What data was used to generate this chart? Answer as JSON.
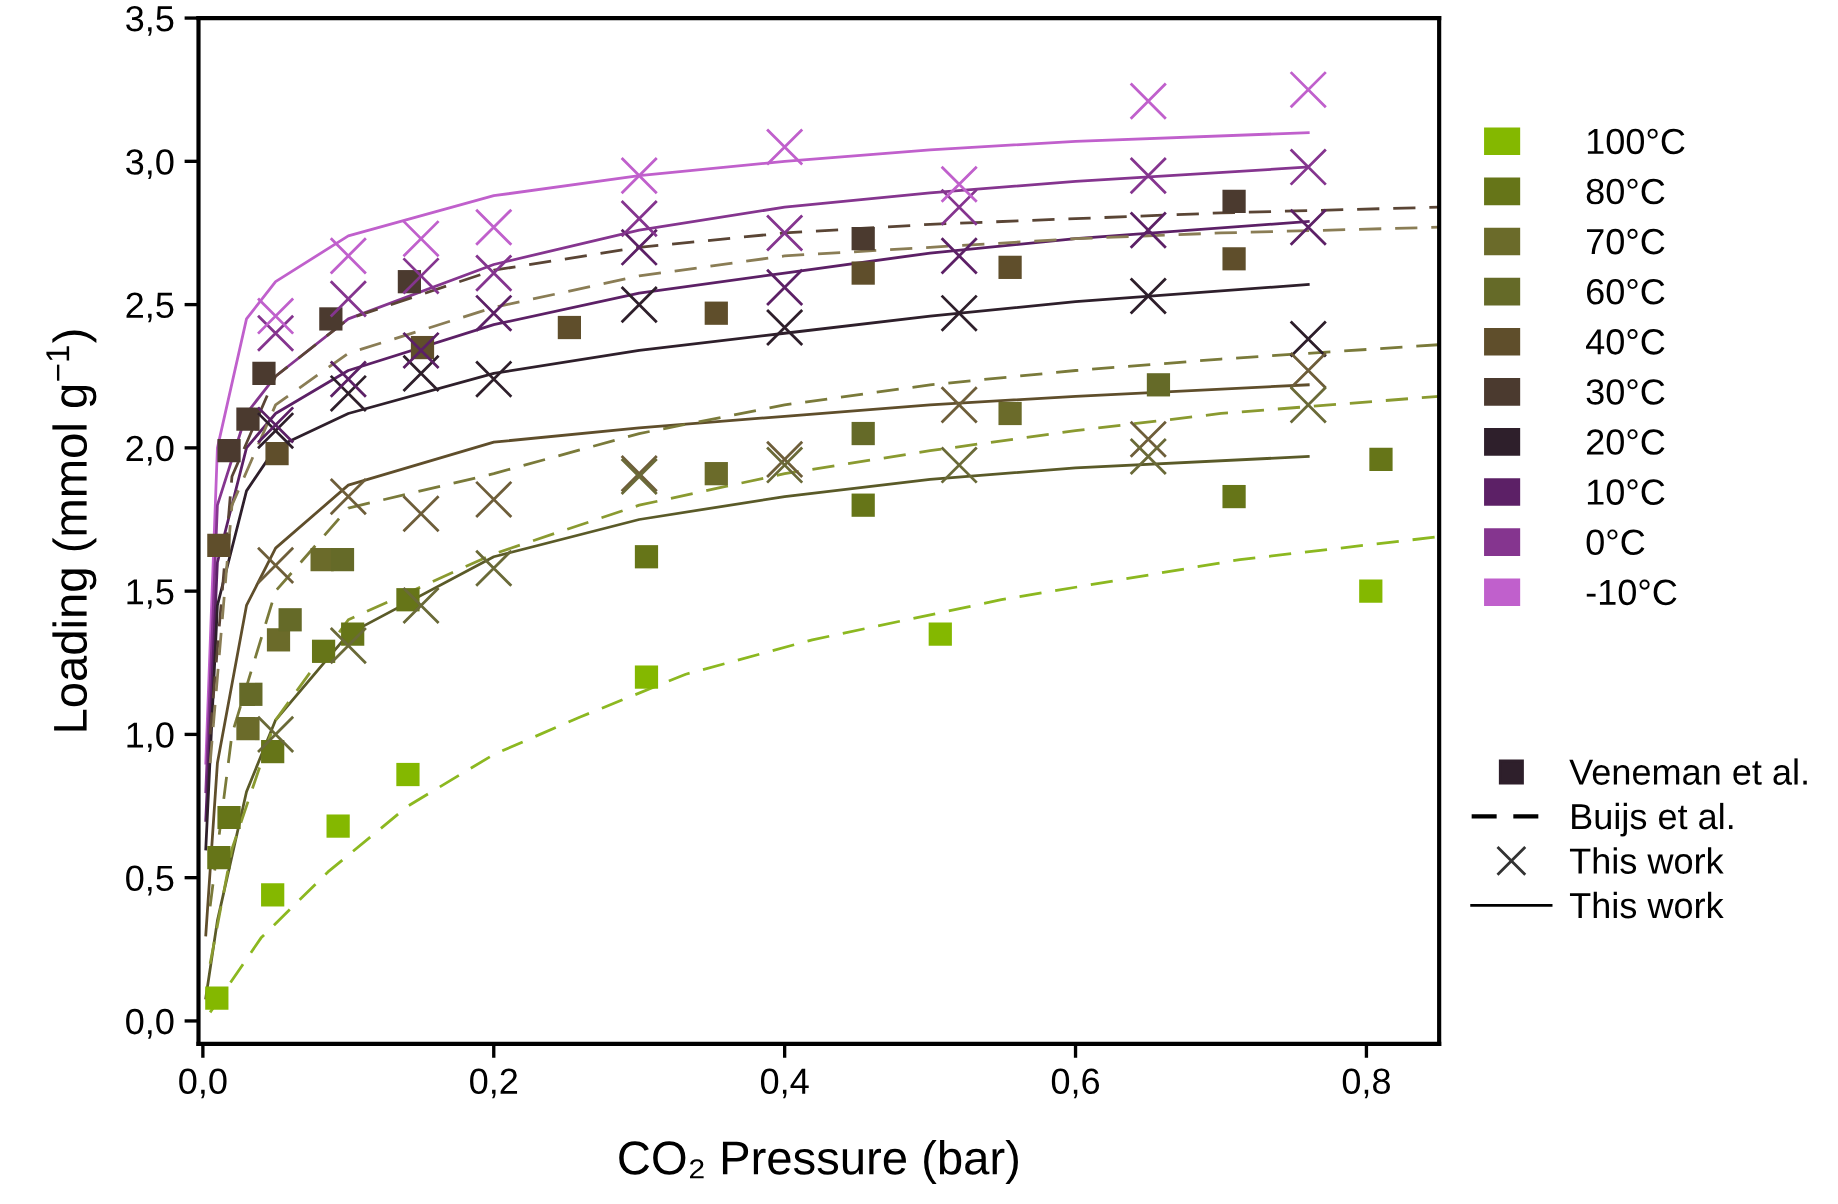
{
  "chart_data": {
    "type": "scatter",
    "xlabel": "CO₂ Pressure (bar)",
    "ylabel": "Loading (mmol g$^{−1}$)",
    "xlim": [
      -0.003,
      0.85
    ],
    "ylim": [
      -0.08,
      3.5
    ],
    "xticks": [
      {
        "value": 0,
        "label": "0,0"
      },
      {
        "value": 0.2,
        "label": "0,2"
      },
      {
        "value": 0.4,
        "label": "0,4"
      },
      {
        "value": 0.6,
        "label": "0,6"
      },
      {
        "value": 0.8,
        "label": "0,8"
      }
    ],
    "yticks": [
      {
        "value": 0,
        "label": "0,0"
      },
      {
        "value": 0.5,
        "label": "0,5"
      },
      {
        "value": 1,
        "label": "1,0"
      },
      {
        "value": 1.5,
        "label": "1,5"
      },
      {
        "value": 2,
        "label": "2,0"
      },
      {
        "value": 2.5,
        "label": "2,5"
      },
      {
        "value": 3,
        "label": "3,0"
      },
      {
        "value": 3.5,
        "label": "3,5"
      }
    ],
    "grid": false,
    "legend": "right",
    "annotations": [
      "Veneman et al.",
      "Buijs et al.",
      "This work",
      "This work"
    ],
    "series": [
      {
        "name": "100°C",
        "marker": "square",
        "color": "#84b800",
        "x": [
          0.0096,
          0.048,
          0.093,
          0.141,
          0.305,
          0.507,
          0.803
        ],
        "values": [
          0.08,
          0.44,
          0.68,
          0.86,
          1.2,
          1.35,
          1.5
        ]
      },
      {
        "name": "80°C",
        "marker": "square",
        "color": "#667518",
        "x": [
          0.011,
          0.018,
          0.048,
          0.083,
          0.103,
          0.141,
          0.305,
          0.454,
          0.709,
          0.81
        ],
        "values": [
          0.57,
          0.71,
          0.94,
          1.29,
          1.35,
          1.47,
          1.62,
          1.8,
          1.83,
          1.96
        ]
      },
      {
        "name": "70°C",
        "marker": "square",
        "color": "#6b6b2a",
        "x": [
          0.031,
          0.052,
          0.082,
          0.353,
          0.555
        ],
        "values": [
          1.02,
          1.33,
          1.61,
          1.91,
          2.12
        ]
      },
      {
        "name": "60°C",
        "marker": "square",
        "color": "#656a28",
        "x": [
          0.033,
          0.06,
          0.096,
          0.454,
          0.657
        ],
        "values": [
          1.14,
          1.4,
          1.61,
          2.05,
          2.22
        ]
      },
      {
        "name": "40°C",
        "marker": "square",
        "color": "#5f4e2b",
        "x": [
          0.011,
          0.051,
          0.151,
          0.252,
          0.353,
          0.454,
          0.555,
          0.709
        ],
        "values": [
          1.66,
          1.98,
          2.35,
          2.42,
          2.47,
          2.61,
          2.63,
          2.66
        ]
      },
      {
        "name": "30°C",
        "marker": "square",
        "color": "#4b3a2f",
        "x": [
          0.018,
          0.031,
          0.042,
          0.088,
          0.142,
          0.454,
          0.709
        ],
        "values": [
          1.99,
          2.1,
          2.26,
          2.45,
          2.58,
          2.73,
          2.86
        ]
      },
      {
        "name": "20°C",
        "marker": "cross",
        "color": "#2e1f2b",
        "x": [
          0.05,
          0.1,
          0.15,
          0.2,
          0.3,
          0.4,
          0.52,
          0.65,
          0.76
        ],
        "values": [
          2.06,
          2.19,
          2.26,
          2.24,
          2.5,
          2.42,
          2.47,
          2.53,
          2.38
        ]
      },
      {
        "name": "10°C",
        "marker": "cross",
        "color": "#5c2066",
        "x": [
          0.05,
          0.1,
          0.15,
          0.2,
          0.3,
          0.4,
          0.52,
          0.65,
          0.76
        ],
        "values": [
          2.08,
          2.24,
          2.34,
          2.47,
          2.7,
          2.56,
          2.67,
          2.76,
          2.77
        ]
      },
      {
        "name": "0°C",
        "marker": "cross",
        "color": "#85358f",
        "x": [
          0.05,
          0.1,
          0.15,
          0.2,
          0.3,
          0.4,
          0.52,
          0.65,
          0.76
        ],
        "values": [
          2.4,
          2.52,
          2.6,
          2.61,
          2.8,
          2.75,
          2.84,
          2.95,
          2.98
        ]
      },
      {
        "name": "-10°C",
        "marker": "cross",
        "color": "#c060cc",
        "x": [
          0.05,
          0.1,
          0.15,
          0.2,
          0.3,
          0.4,
          0.52,
          0.65,
          0.76
        ],
        "values": [
          2.46,
          2.67,
          2.73,
          2.77,
          2.95,
          3.05,
          2.92,
          3.21,
          3.25
        ]
      },
      {
        "marker": "cross",
        "color": "#6e5e3a",
        "x": [
          0.05,
          0.1,
          0.15,
          0.2,
          0.3,
          0.4,
          0.52,
          0.65,
          0.76
        ],
        "values": [
          1.59,
          1.83,
          1.77,
          1.82,
          1.91,
          1.96,
          2.15,
          2.03,
          2.27
        ]
      },
      {
        "marker": "cross",
        "color": "#6a6a38",
        "x": [
          0.05,
          0.1,
          0.15,
          0.2,
          0.3,
          0.4,
          0.52,
          0.65,
          0.76
        ],
        "values": [
          1.0,
          1.31,
          1.45,
          1.58,
          1.9,
          1.94,
          1.94,
          1.97,
          2.15
        ]
      },
      {
        "type": "line",
        "line_style": "solid",
        "color": "#c060cc",
        "x": [
          0.002,
          0.01,
          0.03,
          0.05,
          0.1,
          0.2,
          0.3,
          0.4,
          0.5,
          0.6,
          0.76
        ],
        "values": [
          0.9,
          2.0,
          2.45,
          2.58,
          2.74,
          2.88,
          2.95,
          3.0,
          3.04,
          3.07,
          3.1
        ]
      },
      {
        "type": "line",
        "line_style": "solid",
        "color": "#85358f",
        "x": [
          0.002,
          0.01,
          0.03,
          0.05,
          0.1,
          0.2,
          0.3,
          0.4,
          0.5,
          0.6,
          0.76
        ],
        "values": [
          0.8,
          1.8,
          2.12,
          2.25,
          2.45,
          2.64,
          2.76,
          2.84,
          2.89,
          2.93,
          2.98
        ]
      },
      {
        "type": "line",
        "line_style": "solid",
        "color": "#5c2066",
        "x": [
          0.002,
          0.01,
          0.03,
          0.05,
          0.1,
          0.2,
          0.3,
          0.4,
          0.5,
          0.6,
          0.76
        ],
        "values": [
          0.7,
          1.6,
          2.0,
          2.12,
          2.27,
          2.43,
          2.54,
          2.61,
          2.68,
          2.73,
          2.79
        ]
      },
      {
        "type": "line",
        "line_style": "solid",
        "color": "#2e1f2b",
        "x": [
          0.002,
          0.01,
          0.03,
          0.05,
          0.1,
          0.2,
          0.3,
          0.4,
          0.5,
          0.6,
          0.76
        ],
        "values": [
          0.6,
          1.45,
          1.85,
          2.0,
          2.12,
          2.26,
          2.34,
          2.4,
          2.46,
          2.51,
          2.57
        ]
      },
      {
        "type": "line",
        "line_style": "solid",
        "color": "#5f4e2b",
        "x": [
          0.002,
          0.01,
          0.03,
          0.05,
          0.1,
          0.2,
          0.3,
          0.4,
          0.5,
          0.6,
          0.76
        ],
        "values": [
          0.3,
          0.9,
          1.45,
          1.65,
          1.87,
          2.02,
          2.07,
          2.11,
          2.15,
          2.18,
          2.22
        ]
      },
      {
        "type": "line",
        "line_style": "solid",
        "color": "#5a5a28",
        "x": [
          0.002,
          0.01,
          0.03,
          0.05,
          0.1,
          0.2,
          0.3,
          0.4,
          0.5,
          0.6,
          0.76
        ],
        "values": [
          0.08,
          0.35,
          0.8,
          1.05,
          1.35,
          1.62,
          1.75,
          1.83,
          1.89,
          1.93,
          1.97
        ]
      },
      {
        "type": "line",
        "line_style": "dashed",
        "color": "#5a4535",
        "x": [
          0.005,
          0.02,
          0.05,
          0.1,
          0.2,
          0.3,
          0.4,
          0.5,
          0.6,
          0.7,
          0.85
        ],
        "values": [
          1.0,
          1.9,
          2.25,
          2.45,
          2.62,
          2.7,
          2.75,
          2.78,
          2.8,
          2.82,
          2.84
        ]
      },
      {
        "type": "line",
        "line_style": "dashed",
        "color": "#8a7d55",
        "x": [
          0.005,
          0.02,
          0.05,
          0.1,
          0.2,
          0.3,
          0.4,
          0.5,
          0.6,
          0.7,
          0.85
        ],
        "values": [
          0.9,
          1.8,
          2.15,
          2.33,
          2.49,
          2.6,
          2.67,
          2.7,
          2.73,
          2.75,
          2.77
        ]
      },
      {
        "type": "line",
        "line_style": "dashed",
        "color": "#7a7a3a",
        "x": [
          0.005,
          0.02,
          0.05,
          0.1,
          0.2,
          0.3,
          0.4,
          0.5,
          0.6,
          0.7,
          0.85
        ],
        "values": [
          0.4,
          1.0,
          1.5,
          1.79,
          1.91,
          2.05,
          2.15,
          2.22,
          2.27,
          2.31,
          2.36
        ]
      },
      {
        "type": "line",
        "line_style": "dashed",
        "color": "#8a9a30",
        "x": [
          0.005,
          0.02,
          0.05,
          0.1,
          0.2,
          0.3,
          0.4,
          0.5,
          0.6,
          0.7,
          0.85
        ],
        "values": [
          0.2,
          0.6,
          1.05,
          1.4,
          1.63,
          1.8,
          1.91,
          1.99,
          2.06,
          2.12,
          2.18
        ]
      },
      {
        "type": "line",
        "line_style": "dashed",
        "color": "#8cb820",
        "x": [
          0.005,
          0.04,
          0.086,
          0.141,
          0.2,
          0.259,
          0.332,
          0.419,
          0.549,
          0.713,
          0.85
        ],
        "values": [
          0.03,
          0.29,
          0.52,
          0.75,
          0.93,
          1.06,
          1.21,
          1.33,
          1.47,
          1.61,
          1.69
        ]
      }
    ]
  }
}
